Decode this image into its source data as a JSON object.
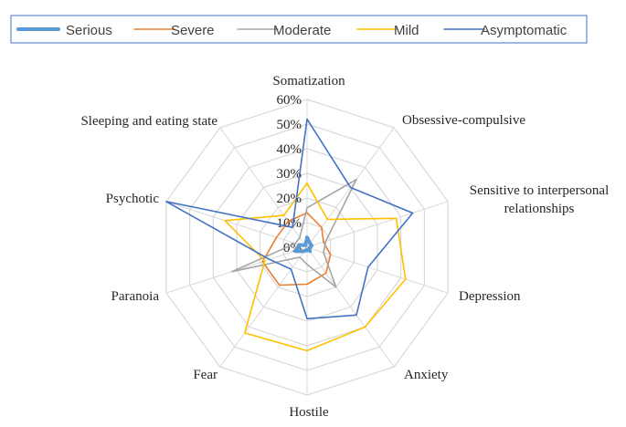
{
  "chart_data": {
    "type": "radar",
    "title": "",
    "axes": [
      "Somatization",
      "Obsessive-compulsive",
      "Sensitive to interpersonal relationships",
      "Depression",
      "Anxiety",
      "Hostile",
      "Fear",
      "Paranoia",
      "Psychotic",
      "Sleeping and eating state"
    ],
    "axis_label_lines": [
      [
        "Somatization"
      ],
      [
        "Obsessive-compulsive"
      ],
      [
        "Sensitive to interpersonal",
        "relationships"
      ],
      [
        "Depression"
      ],
      [
        "Anxiety"
      ],
      [
        "Hostile"
      ],
      [
        "Fear"
      ],
      [
        "Paranoia"
      ],
      [
        "Psychotic"
      ],
      [
        "Sleeping and eating state"
      ]
    ],
    "ticks": [
      "0%",
      "10%",
      "20%",
      "30%",
      "40%",
      "50%",
      "60%"
    ],
    "rmax": 0.6,
    "grid": true,
    "legend_position": "top",
    "series": [
      {
        "name": "Serious",
        "color": "#5b9bd5",
        "width": 4,
        "values": [
          0.04,
          0.02,
          0.02,
          0.01,
          0.02,
          0.01,
          0.02,
          0.05,
          0.03,
          0.01
        ]
      },
      {
        "name": "Severe",
        "color": "#ed7d31",
        "width": 1.6,
        "values": [
          0.14,
          0.1,
          0.07,
          0.1,
          0.13,
          0.15,
          0.19,
          0.19,
          0.13,
          0.13
        ]
      },
      {
        "name": "Moderate",
        "color": "#a5a5a5",
        "width": 1.6,
        "values": [
          0.16,
          0.34,
          0.08,
          0.07,
          0.2,
          0.07,
          0.05,
          0.32,
          0.05,
          0.05
        ]
      },
      {
        "name": "Mild",
        "color": "#ffc000",
        "width": 1.6,
        "values": [
          0.26,
          0.14,
          0.38,
          0.42,
          0.4,
          0.42,
          0.43,
          0.18,
          0.35,
          0.16
        ]
      },
      {
        "name": "Asymptomatic",
        "color": "#4472c4",
        "width": 1.6,
        "values": [
          0.52,
          0.3,
          0.45,
          0.26,
          0.34,
          0.29,
          0.11,
          0.16,
          0.6,
          0.1
        ]
      }
    ]
  }
}
